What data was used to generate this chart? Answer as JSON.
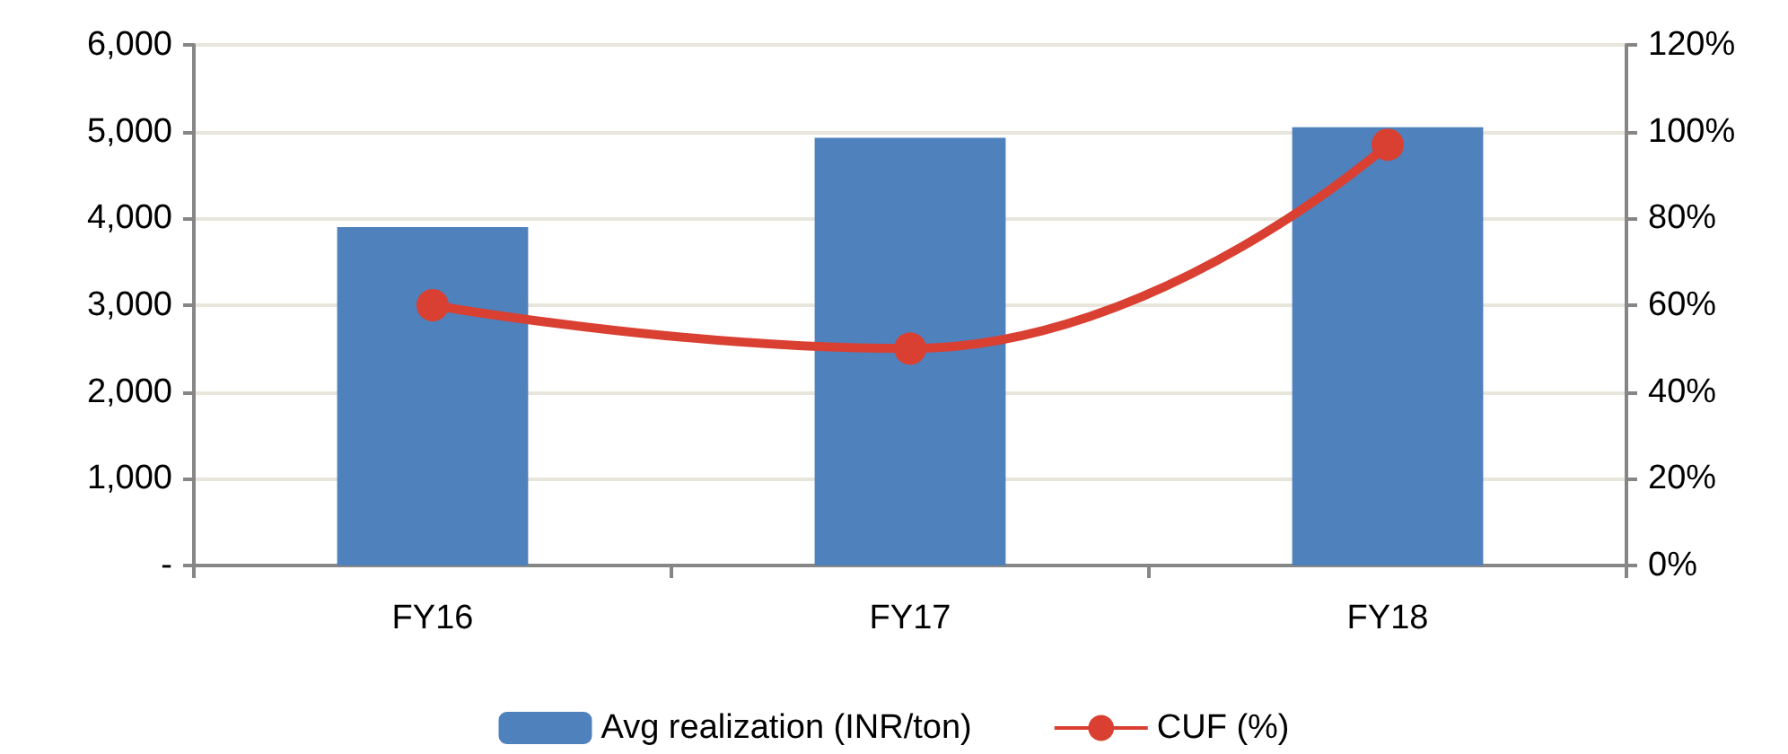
{
  "chart_data": {
    "type": "bar",
    "categories": [
      "FY16",
      "FY17",
      "FY18"
    ],
    "series": [
      {
        "name": "Avg realization (INR/ton)",
        "color": "#4f81bd",
        "values": [
          3900,
          4930,
          5050
        ]
      },
      {
        "name": "CUF (%)",
        "type": "line",
        "axis": "y2",
        "color": "#d94032",
        "values": [
          60,
          50,
          97
        ]
      }
    ],
    "ylim": [
      0,
      6000
    ],
    "yticks": [
      {
        "value": 0,
        "label": "-"
      },
      {
        "value": 1000,
        "label": "1,000"
      },
      {
        "value": 2000,
        "label": "2,000"
      },
      {
        "value": 3000,
        "label": "3,000"
      },
      {
        "value": 4000,
        "label": "4,000"
      },
      {
        "value": 5000,
        "label": "5,000"
      },
      {
        "value": 6000,
        "label": "6,000"
      }
    ],
    "y2lim": [
      0,
      120
    ],
    "y2ticks": [
      {
        "value": 0,
        "label": "0%"
      },
      {
        "value": 20,
        "label": "20%"
      },
      {
        "value": 40,
        "label": "40%"
      },
      {
        "value": 60,
        "label": "60%"
      },
      {
        "value": 80,
        "label": "80%"
      },
      {
        "value": 100,
        "label": "100%"
      },
      {
        "value": 120,
        "label": "120%"
      }
    ],
    "grid": "y",
    "legend": "bottom",
    "marker": "circle"
  }
}
